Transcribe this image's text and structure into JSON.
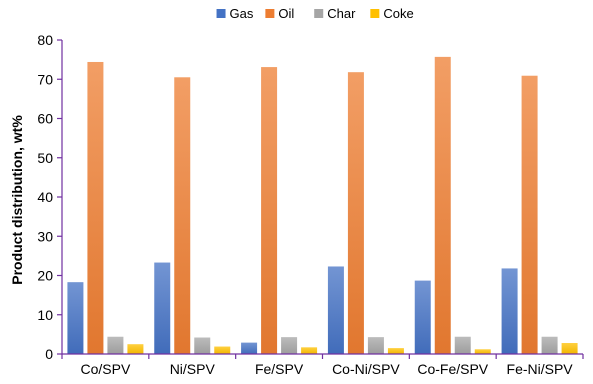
{
  "chart_data": {
    "type": "bar",
    "title": "",
    "xlabel": "",
    "ylabel": "Product distribution, wt%",
    "ylim": [
      0,
      80
    ],
    "yticks": [
      0,
      10,
      20,
      30,
      40,
      50,
      60,
      70,
      80
    ],
    "grid": false,
    "legend_position": "top-center",
    "categories": [
      "Co/SPV",
      "Ni/SPV",
      "Fe/SPV",
      "Co-Ni/SPV",
      "Co-Fe/SPV",
      "Fe-Ni/SPV"
    ],
    "series": [
      {
        "name": "Gas",
        "color": "#4472C4",
        "values": [
          18.3,
          23.3,
          2.9,
          22.3,
          18.7,
          21.8
        ]
      },
      {
        "name": "Oil",
        "color": "#ED7D31",
        "values": [
          74.4,
          70.5,
          73.1,
          71.8,
          75.7,
          70.9
        ]
      },
      {
        "name": "Char",
        "color": "#A5A5A5",
        "values": [
          4.4,
          4.2,
          4.3,
          4.3,
          4.4,
          4.4
        ]
      },
      {
        "name": "Coke",
        "color": "#FFC000",
        "values": [
          2.5,
          1.9,
          1.7,
          1.5,
          1.2,
          2.8
        ]
      }
    ],
    "axis_color": "#7030A0"
  }
}
